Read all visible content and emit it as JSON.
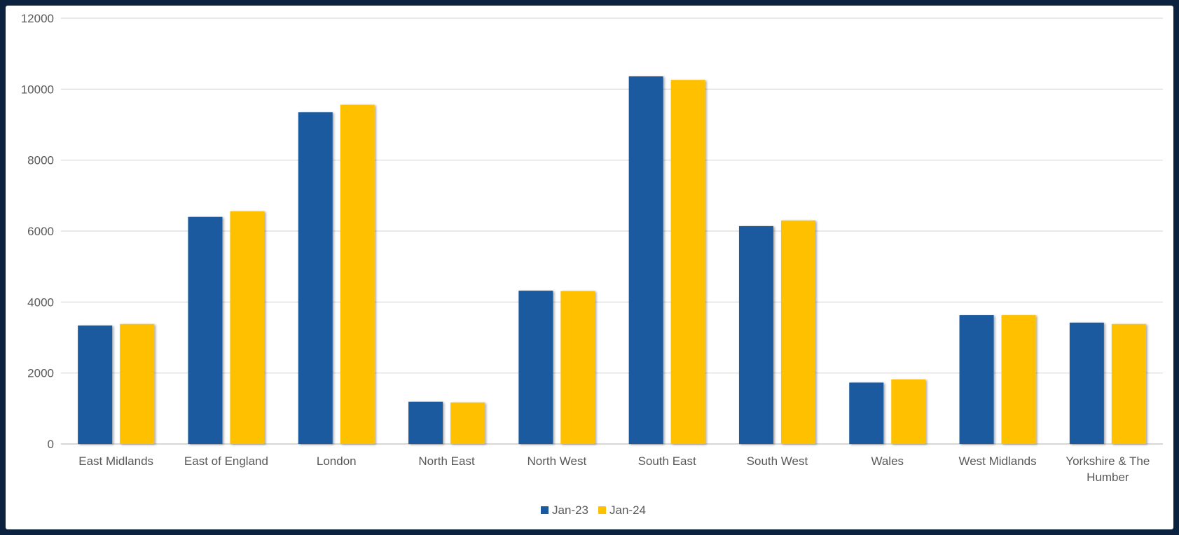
{
  "chart_data": {
    "type": "bar",
    "title": "",
    "xlabel": "",
    "ylabel": "",
    "ylim": [
      0,
      12000
    ],
    "yticks": [
      0,
      2000,
      4000,
      6000,
      8000,
      10000,
      12000
    ],
    "grid": true,
    "legend_position": "bottom",
    "categories": [
      "East Midlands",
      "East of England",
      "London",
      "North East",
      "North West",
      "South East",
      "South West",
      "Wales",
      "West Midlands",
      "Yorkshire & The Humber"
    ],
    "series": [
      {
        "name": "Jan-23",
        "color": "#1a5aa0",
        "values": [
          3340,
          6400,
          9350,
          1190,
          4320,
          10360,
          6140,
          1730,
          3630,
          3420
        ]
      },
      {
        "name": "Jan-24",
        "color": "#ffc000",
        "values": [
          3380,
          6560,
          9560,
          1170,
          4310,
          10260,
          6300,
          1820,
          3630,
          3380
        ]
      }
    ]
  }
}
